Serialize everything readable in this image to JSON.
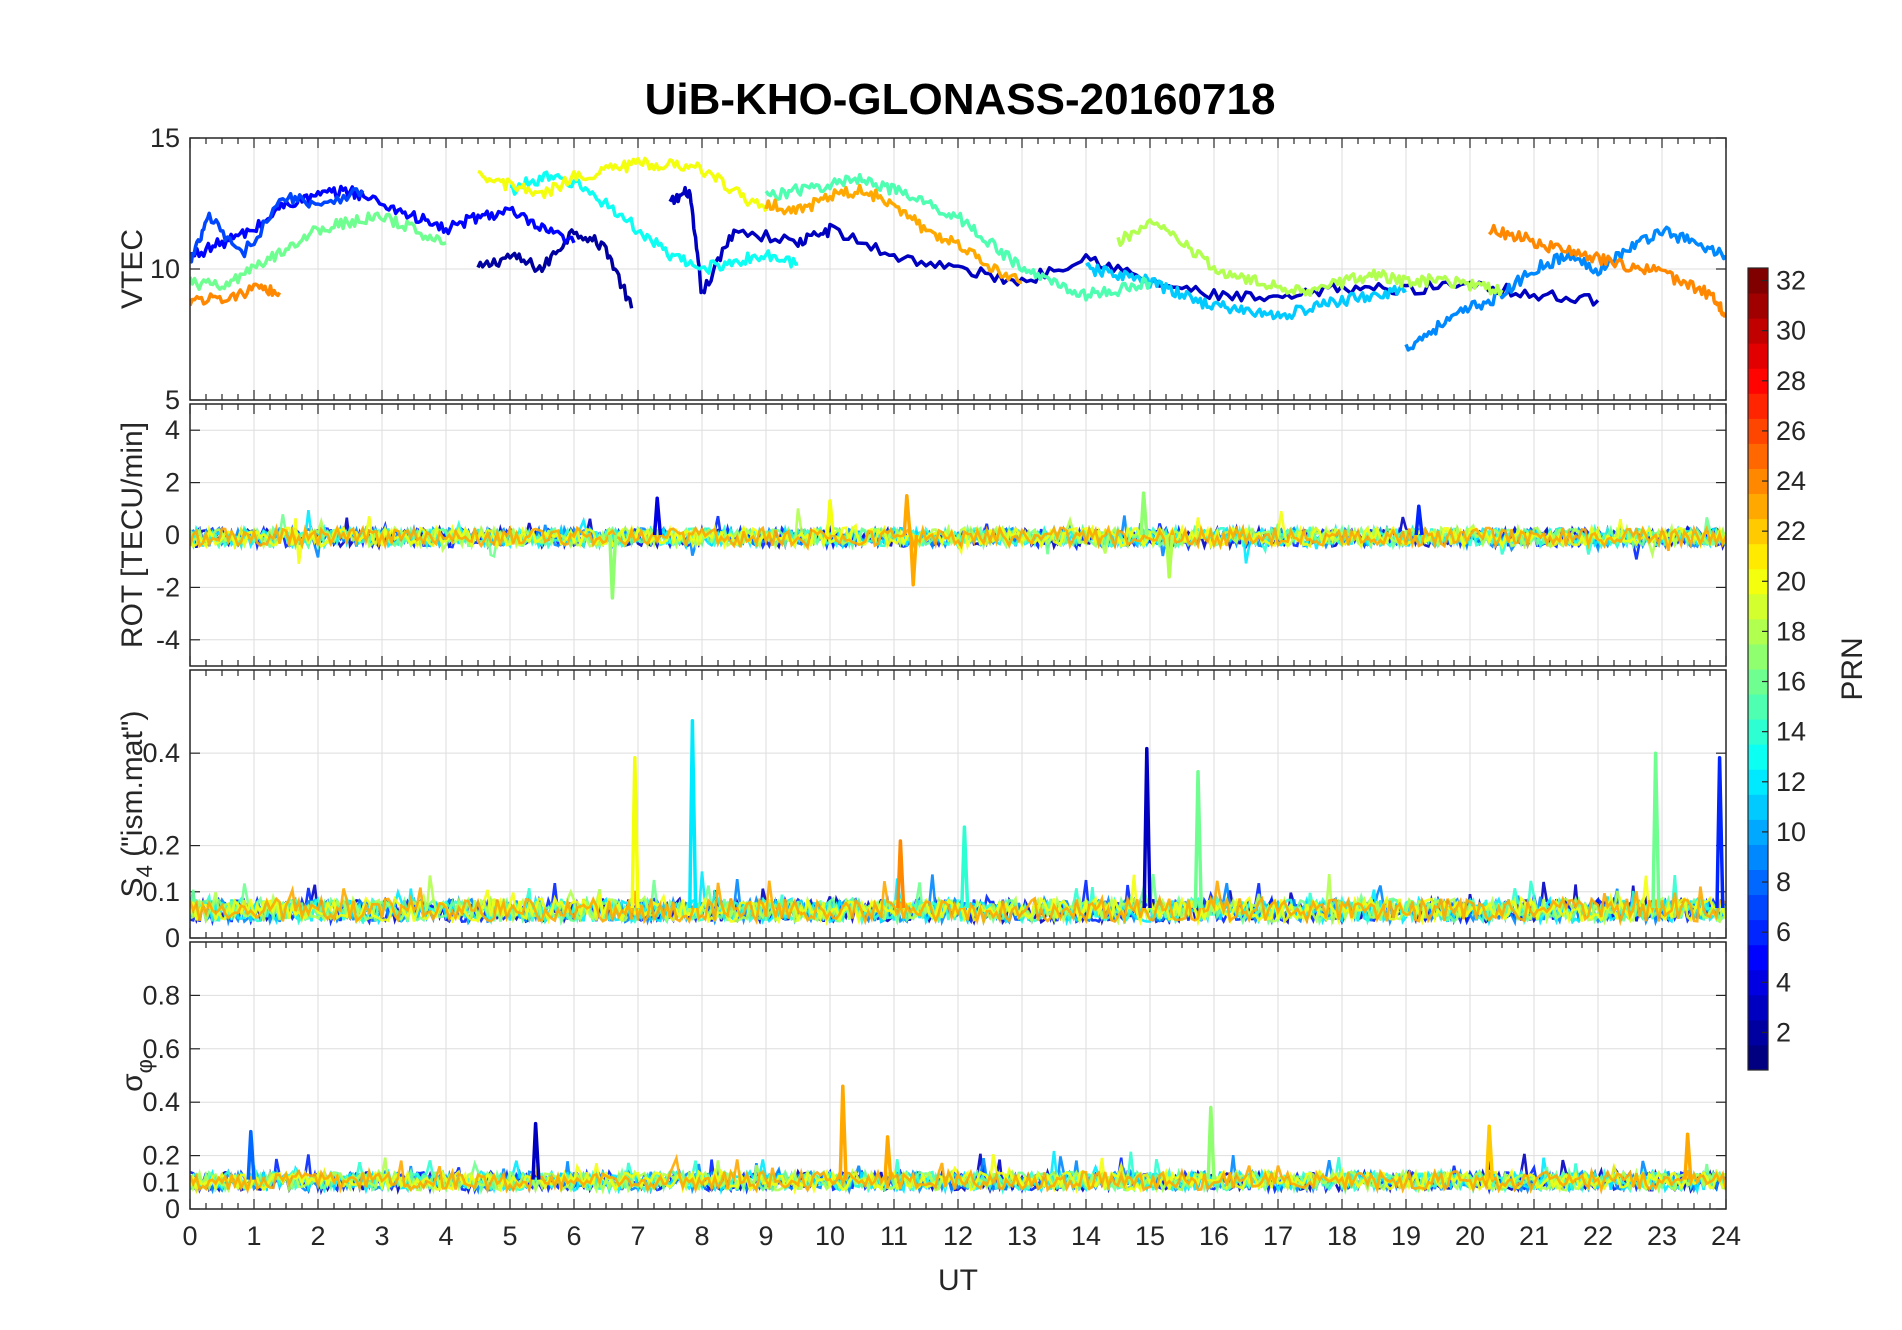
{
  "chart_data": {
    "type": "line",
    "title": "UiB-KHO-GLONASS-20160718",
    "xlabel": "UT",
    "xlim": [
      0,
      24
    ],
    "x_ticks": [
      "0",
      "1",
      "2",
      "3",
      "4",
      "5",
      "6",
      "7",
      "8",
      "9",
      "10",
      "11",
      "12",
      "13",
      "14",
      "15",
      "16",
      "17",
      "18",
      "19",
      "20",
      "21",
      "22",
      "23",
      "24"
    ],
    "grid": true,
    "panels": [
      {
        "ylabel": "VTEC",
        "ylim": [
          5,
          15
        ],
        "y_ticks": [
          "5",
          "10",
          "15"
        ],
        "series": [
          {
            "prn": 2,
            "x": [
              4.5,
              5.0,
              5.5,
              6.0,
              6.5,
              6.9
            ],
            "y": [
              10.0,
              10.5,
              10.0,
              11.5,
              10.8,
              8.5
            ]
          },
          {
            "prn": 3,
            "x": [
              7.5,
              7.8,
              8.0,
              8.5,
              9.5,
              10.0,
              11.0,
              12.0,
              13.0,
              14.0,
              15.0,
              16.0,
              17.0,
              18.0,
              19.0,
              20.0,
              21.0,
              22.0
            ],
            "y": [
              12.5,
              13.0,
              9.0,
              11.5,
              11.0,
              11.5,
              10.5,
              10.0,
              9.5,
              10.5,
              9.5,
              9.0,
              8.8,
              9.3,
              9.2,
              9.5,
              9.0,
              8.8
            ]
          },
          {
            "prn": 5,
            "x": [
              0.0,
              0.5,
              1.0,
              1.5,
              2.0,
              2.5,
              3.0,
              3.5,
              4.0,
              4.5,
              5.0,
              5.5,
              6.0
            ],
            "y": [
              10.5,
              11.0,
              11.5,
              12.5,
              12.8,
              13.0,
              12.5,
              12.0,
              11.5,
              12.0,
              12.2,
              11.5,
              11.0
            ]
          },
          {
            "prn": 7,
            "x": [
              0.0,
              0.3,
              0.8,
              1.5,
              2.0,
              2.7
            ],
            "y": [
              10.2,
              12.0,
              10.5,
              12.8,
              12.5,
              13.0
            ]
          },
          {
            "prn": 9,
            "x": [
              19.0,
              19.5,
              20.0,
              20.5,
              21.0,
              21.5,
              22.0,
              22.5,
              23.0,
              23.5,
              24.0
            ],
            "y": [
              7.0,
              7.8,
              8.5,
              9.0,
              10.0,
              10.5,
              10.0,
              10.8,
              11.5,
              11.0,
              10.5
            ]
          },
          {
            "prn": 11,
            "x": [
              14.0,
              14.5,
              15.0,
              15.5,
              16.0,
              16.5,
              17.0,
              17.5,
              18.0,
              18.5,
              19.0
            ],
            "y": [
              10.0,
              9.8,
              9.5,
              9.0,
              8.6,
              8.4,
              8.2,
              8.5,
              8.8,
              9.0,
              9.2
            ]
          },
          {
            "prn": 13,
            "x": [
              5.0,
              5.5,
              6.0,
              6.5,
              7.0,
              7.5,
              8.0,
              8.5,
              9.0,
              9.5
            ],
            "y": [
              13.0,
              13.5,
              13.3,
              12.5,
              11.5,
              10.5,
              10.0,
              10.3,
              10.5,
              10.2
            ]
          },
          {
            "prn": 15,
            "x": [
              9.0,
              9.5,
              10.0,
              10.5,
              11.0,
              11.5,
              12.0,
              12.5,
              13.0,
              13.5,
              14.0,
              14.5,
              15.0
            ],
            "y": [
              12.8,
              13.0,
              13.2,
              13.5,
              13.0,
              12.5,
              12.0,
              11.0,
              10.0,
              9.5,
              9.0,
              9.2,
              9.5
            ]
          },
          {
            "prn": 16,
            "x": [
              0.0,
              0.5,
              1.0,
              1.5,
              2.0,
              2.5,
              3.0,
              3.5,
              4.0
            ],
            "y": [
              9.5,
              9.3,
              10.0,
              10.8,
              11.5,
              11.8,
              12.0,
              11.5,
              11.0
            ]
          },
          {
            "prn": 18,
            "x": [
              14.5,
              15.0,
              15.5,
              16.0,
              16.5,
              17.0,
              17.5,
              18.0,
              18.5,
              19.0,
              19.5,
              20.0,
              20.5
            ],
            "y": [
              11.0,
              11.8,
              11.0,
              10.0,
              9.6,
              9.3,
              9.2,
              9.5,
              9.8,
              9.5,
              9.6,
              9.4,
              9.2
            ]
          },
          {
            "prn": 20,
            "x": [
              4.5,
              5.0,
              5.5,
              6.0,
              6.5,
              7.0,
              7.5,
              8.0,
              8.5,
              9.0
            ],
            "y": [
              13.5,
              13.2,
              12.8,
              13.5,
              13.8,
              14.0,
              14.0,
              13.8,
              13.0,
              12.2
            ]
          },
          {
            "prn": 23,
            "x": [
              9.0,
              9.5,
              10.0,
              10.5,
              11.0,
              11.5,
              12.0,
              12.5,
              13.0
            ],
            "y": [
              12.5,
              12.2,
              12.8,
              13.0,
              12.5,
              11.5,
              11.0,
              10.0,
              9.5
            ]
          },
          {
            "prn": 24,
            "x": [
              0.0,
              0.5,
              1.0,
              1.4
            ],
            "y": [
              8.8,
              8.9,
              9.2,
              9.1
            ]
          },
          {
            "prn": 24,
            "x": [
              20.3,
              20.8,
              21.3,
              21.8,
              22.3,
              22.8,
              23.3,
              23.8,
              24.0
            ],
            "y": [
              11.5,
              11.2,
              10.8,
              10.5,
              10.2,
              10.0,
              9.5,
              9.0,
              8.2
            ]
          }
        ]
      },
      {
        "ylabel": "ROT [TECU/min]",
        "ylim": [
          -5,
          5
        ],
        "y_ticks": [
          "-4",
          "-2",
          "0",
          "2",
          "4"
        ],
        "series_note": "",
        "spikes": [
          {
            "x": 6.6,
            "y": -2.4,
            "prn": 17
          },
          {
            "x": 11.3,
            "y": -1.9,
            "prn": 23
          },
          {
            "x": 11.2,
            "y": 1.5,
            "prn": 23
          },
          {
            "x": 14.9,
            "y": 1.6,
            "prn": 17
          },
          {
            "x": 15.3,
            "y": -1.6,
            "prn": 18
          },
          {
            "x": 7.3,
            "y": 1.4,
            "prn": 4
          },
          {
            "x": 10.0,
            "y": 1.3,
            "prn": 20
          },
          {
            "x": 19.2,
            "y": 1.1,
            "prn": 6
          }
        ]
      },
      {
        "ylabel": "S_4 (\"ism.mat\")",
        "ylim": [
          0,
          0.58
        ],
        "y_ticks": [
          "0",
          "0.1",
          "0.2",
          "0.4"
        ],
        "spikes": [
          {
            "x": 6.95,
            "y": 0.39,
            "prn": 20
          },
          {
            "x": 7.85,
            "y": 0.47,
            "prn": 12
          },
          {
            "x": 14.95,
            "y": 0.41,
            "prn": 3
          },
          {
            "x": 15.75,
            "y": 0.36,
            "prn": 16
          },
          {
            "x": 22.9,
            "y": 0.4,
            "prn": 16
          },
          {
            "x": 23.9,
            "y": 0.39,
            "prn": 6
          },
          {
            "x": 11.1,
            "y": 0.21,
            "prn": 24
          },
          {
            "x": 12.1,
            "y": 0.24,
            "prn": 14
          }
        ]
      },
      {
        "ylabel": "σ_φ",
        "ylim": [
          0,
          1
        ],
        "y_ticks": [
          "0",
          "0.1",
          "0.2",
          "0.4",
          "0.6",
          "0.8"
        ],
        "spikes": [
          {
            "x": 10.2,
            "y": 0.46,
            "prn": 23
          },
          {
            "x": 10.9,
            "y": 0.27,
            "prn": 23
          },
          {
            "x": 15.95,
            "y": 0.38,
            "prn": 17
          },
          {
            "x": 20.3,
            "y": 0.31,
            "prn": 22
          },
          {
            "x": 23.4,
            "y": 0.28,
            "prn": 23
          },
          {
            "x": 0.95,
            "y": 0.29,
            "prn": 8
          },
          {
            "x": 5.4,
            "y": 0.32,
            "prn": 3
          }
        ]
      }
    ],
    "colorbar": {
      "label": "PRN",
      "range": [
        1,
        32
      ],
      "ticks": [
        "2",
        "4",
        "6",
        "8",
        "10",
        "12",
        "14",
        "16",
        "18",
        "20",
        "22",
        "24",
        "26",
        "28",
        "30",
        "32"
      ],
      "colormap": "jet"
    }
  }
}
